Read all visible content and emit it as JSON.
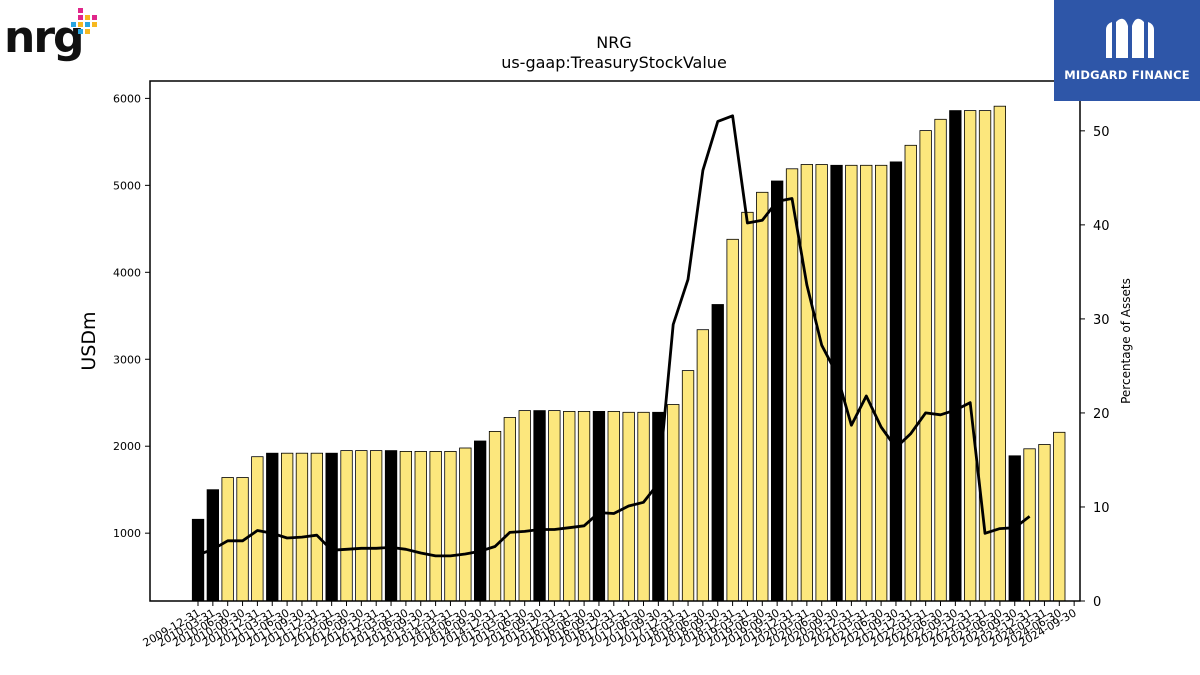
{
  "brand": {
    "left_logo_text": "nrg",
    "right_logo_text": "MIDGARD FINANCE"
  },
  "chart_data": {
    "type": "bar",
    "title": "NRG",
    "subtitle": "us-gaap:TreasuryStockValue",
    "ylabel": "USDm",
    "y2label": "Percentage of Assets",
    "ylim": [
      220,
      6200
    ],
    "y2lim": [
      0,
      55.3
    ],
    "yticks": [
      1000,
      2000,
      3000,
      4000,
      5000,
      6000
    ],
    "y2ticks": [
      0,
      10,
      20,
      30,
      40,
      50
    ],
    "colors": {
      "bar_default": "#fce77d",
      "bar_highlight": "#000000",
      "line": "#000000"
    },
    "categories": [
      "2009-12-31",
      "2010-03-31",
      "2010-06-30",
      "2010-09-30",
      "2010-12-31",
      "2011-03-31",
      "2011-06-30",
      "2011-09-30",
      "2011-12-31",
      "2012-03-31",
      "2012-06-30",
      "2012-09-30",
      "2012-12-31",
      "2013-03-31",
      "2013-06-30",
      "2013-09-30",
      "2013-12-31",
      "2014-03-31",
      "2014-06-30",
      "2014-09-30",
      "2014-12-31",
      "2015-03-31",
      "2015-06-30",
      "2015-09-30",
      "2015-12-31",
      "2016-03-31",
      "2016-06-30",
      "2016-09-30",
      "2016-12-31",
      "2017-03-31",
      "2017-06-30",
      "2017-09-30",
      "2017-12-31",
      "2018-03-31",
      "2018-06-30",
      "2018-09-30",
      "2018-12-31",
      "2019-03-31",
      "2019-06-30",
      "2019-09-30",
      "2019-12-31",
      "2020-03-31",
      "2020-06-30",
      "2020-09-30",
      "2020-12-31",
      "2021-03-31",
      "2021-06-30",
      "2021-09-30",
      "2021-12-31",
      "2022-03-31",
      "2022-06-30",
      "2022-09-30",
      "2022-12-31",
      "2023-03-31",
      "2023-06-30",
      "2023-09-30",
      "2023-12-31",
      "2024-03-31",
      "2024-06-30",
      "2024-09-30"
    ],
    "xtick_labels": [
      "2009-12-31",
      "2010-03-31",
      "2010-06-30",
      "2010-09-30",
      "2010-12-31",
      "2011-03-31",
      "2011-06-30",
      "2011-09-30",
      "2011-12-31",
      "2012-03-31",
      "2012-06-30",
      "2012-09-30",
      "2012-12-31",
      "2013-03-31",
      "2013-06-30",
      "2013-09-30",
      "2013-12-31",
      "2014-03-31",
      "2014-06-30",
      "2014-09-30",
      "2014-12-31",
      "2015-03-31",
      "2015-06-30",
      "2015-09-30",
      "2015-12-31",
      "2016-03-31",
      "2016-06-30",
      "2016-09-30",
      "2016-12-31",
      "2017-03-31",
      "2017-06-30",
      "2017-09-30",
      "2017-12-31",
      "2018-03-31",
      "2018-06-30",
      "2018-09-30",
      "2018-12-31",
      "2019-03-31",
      "2019-06-30",
      "2019-09-30",
      "2019-12-31",
      "2020-03-31",
      "2020-06-30",
      "2020-09-30",
      "2020-12-31",
      "2021-03-31",
      "2021-06-30",
      "2021-09-30",
      "2021-12-31",
      "2022-03-31",
      "2022-06-30",
      "2022-09-30",
      "2022-12-31",
      "2023-03-31",
      "2023-06-30",
      "2023-09-30",
      "2023-12-31",
      "2024-03-31",
      "2024-06-30",
      "2024-09-30"
    ],
    "series": [
      {
        "type": "bar",
        "axis": "left",
        "values": [
          1160,
          1500,
          1640,
          1640,
          1880,
          1920,
          1920,
          1920,
          1920,
          1920,
          1950,
          1950,
          1950,
          1950,
          1940,
          1940,
          1940,
          1940,
          1980,
          2060,
          2170,
          2330,
          2410,
          2410,
          2410,
          2400,
          2400,
          2400,
          2400,
          2390,
          2390,
          2390,
          2480,
          2870,
          3340,
          3630,
          4380,
          4690,
          4920,
          5050,
          5190,
          5240,
          5240,
          5230,
          5230,
          5230,
          5230,
          5270,
          5460,
          5630,
          5760,
          5860,
          5860,
          5860,
          5910,
          1890,
          1970,
          2020,
          2160,
          null
        ],
        "highlight": [
          true,
          true,
          false,
          false,
          false,
          true,
          false,
          false,
          false,
          true,
          false,
          false,
          false,
          true,
          false,
          false,
          false,
          false,
          false,
          true,
          false,
          false,
          false,
          true,
          false,
          false,
          false,
          true,
          false,
          false,
          false,
          true,
          false,
          false,
          false,
          true,
          false,
          false,
          false,
          true,
          false,
          false,
          false,
          true,
          false,
          false,
          false,
          true,
          false,
          false,
          false,
          true,
          false,
          false,
          false,
          true,
          false,
          false,
          false,
          false
        ]
      },
      {
        "type": "line",
        "axis": "right",
        "values": [
          4.9,
          5.5,
          6.4,
          6.4,
          7.5,
          7.2,
          6.7,
          6.8,
          7.0,
          5.4,
          5.5,
          5.6,
          5.6,
          5.7,
          5.5,
          5.1,
          4.8,
          4.8,
          5.0,
          5.3,
          5.8,
          7.3,
          7.4,
          7.6,
          7.6,
          7.8,
          8.0,
          9.4,
          9.3,
          10.1,
          10.5,
          12.5,
          29.4,
          34.2,
          45.8,
          51.0,
          51.6,
          40.2,
          40.5,
          42.5,
          42.8,
          33.6,
          27.2,
          24.2,
          18.7,
          21.8,
          18.5,
          16.3,
          17.8,
          20.0,
          19.8,
          20.3,
          21.1,
          7.2,
          7.7,
          7.8,
          9.0,
          null,
          null,
          null
        ]
      }
    ],
    "grid": false,
    "legend": "none"
  }
}
